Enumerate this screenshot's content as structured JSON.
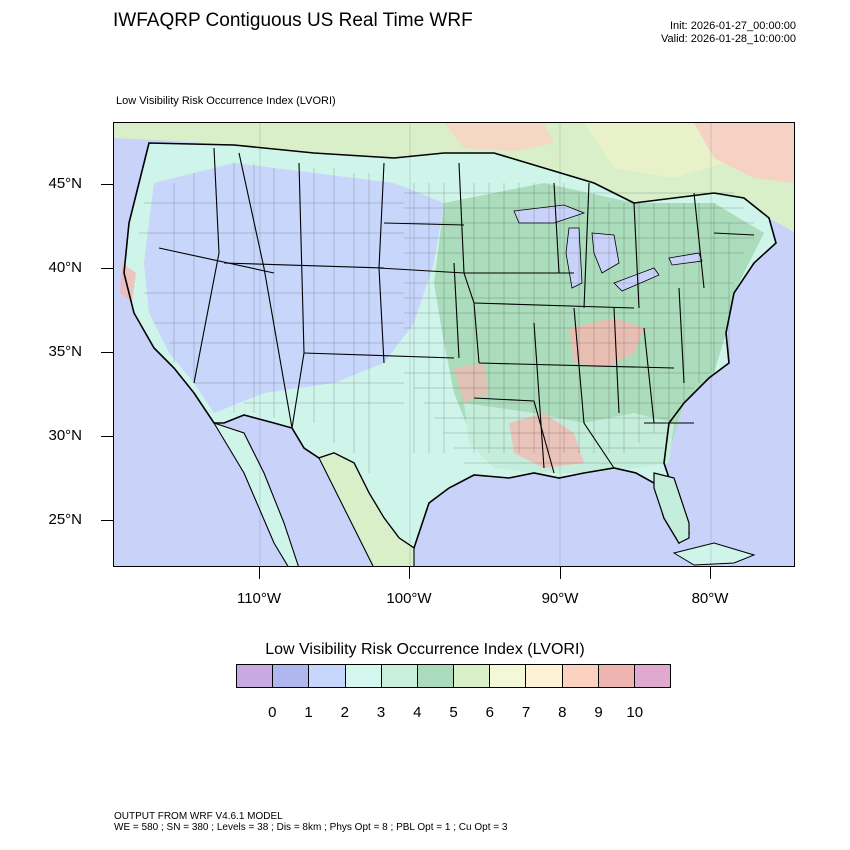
{
  "header": {
    "title": "IWFAQRP Contiguous US Real Time WRF",
    "init": "Init: 2026-01-27_00:00:00",
    "valid": "Valid: 2026-01-28_10:00:00",
    "subtitle": "Low Visibility Risk Occurrence Index   (LVORI)"
  },
  "map": {
    "lat_labels": [
      "45°N",
      "40°N",
      "35°N",
      "30°N",
      "25°N"
    ],
    "lon_labels": [
      "110°W",
      "100°W",
      "90°W",
      "80°W"
    ],
    "colors": {
      "ocean": "#c9d3fa",
      "land_low": "#cff4ea",
      "land_mid": "#c4eedb",
      "land_green": "#abdcbb",
      "west_blue": "#c7d6fa",
      "canada": "#d8efc9",
      "risk": "#f2b9b1",
      "lines": "#000000"
    }
  },
  "legend": {
    "title": "Low Visibility Risk Occurrence Index  (LVORI)",
    "labels": [
      "0",
      "1",
      "2",
      "3",
      "4",
      "5",
      "6",
      "7",
      "8",
      "9",
      "10"
    ],
    "colors": [
      "#c9a9e0",
      "#b0b6ee",
      "#c7d6fb",
      "#d4f8f0",
      "#c8efdc",
      "#abdbbd",
      "#d9f0c9",
      "#f3f8d9",
      "#fdf2d3",
      "#fad2bf",
      "#eeb5b0",
      "#dfaace"
    ]
  },
  "footer": {
    "line1": "OUTPUT FROM WRF V4.6.1 MODEL",
    "line2": "WE = 580 ; SN = 380 ; Levels = 38 ; Dis = 8km ; Phys Opt = 8 ; PBL Opt = 1 ; Cu Opt = 3"
  }
}
